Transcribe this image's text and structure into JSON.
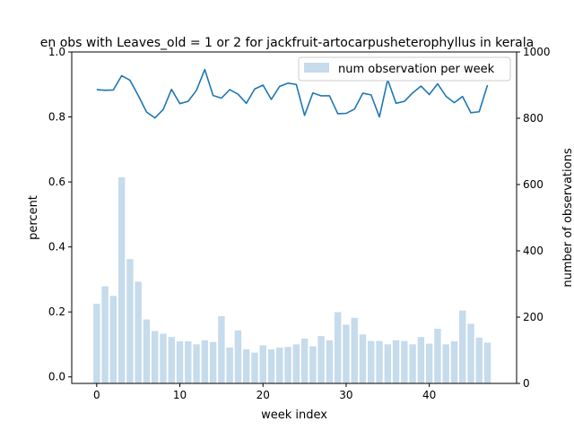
{
  "chart_data": {
    "type": "bar+line",
    "title": "en obs with Leaves_old = 1 or 2 for jackfruit-artocarpusheterophyllus in kerala",
    "xlabel": "week index",
    "ylabel_left": "percent",
    "ylabel_right": "number of observations",
    "xlim": [
      -3.0,
      50.5
    ],
    "ylim_left": [
      -0.02,
      1.0
    ],
    "ylim_right": [
      0,
      1000
    ],
    "x_ticks": [
      0,
      10,
      20,
      30,
      40
    ],
    "y_left_ticks": [
      "0.0",
      "0.2",
      "0.4",
      "0.6",
      "0.8",
      "1.0"
    ],
    "y_right_ticks": [
      "0",
      "200",
      "400",
      "600",
      "800",
      "1000"
    ],
    "legend": {
      "placement": "top-right",
      "label": "num observation per week"
    },
    "colors": {
      "bar": "#c6dbec",
      "line": "#1f77b4"
    },
    "weeks": [
      0,
      1,
      2,
      3,
      4,
      5,
      6,
      7,
      8,
      9,
      10,
      11,
      12,
      13,
      14,
      15,
      16,
      17,
      18,
      19,
      20,
      21,
      22,
      23,
      24,
      25,
      26,
      27,
      28,
      29,
      30,
      31,
      32,
      33,
      34,
      35,
      36,
      37,
      38,
      39,
      40,
      41,
      42,
      43,
      44,
      45,
      46,
      47
    ],
    "bar_counts": [
      240,
      293,
      264,
      622,
      375,
      307,
      193,
      158,
      150,
      140,
      127,
      127,
      118,
      130,
      125,
      203,
      108,
      160,
      103,
      93,
      115,
      103,
      108,
      110,
      118,
      135,
      112,
      143,
      130,
      215,
      177,
      198,
      148,
      128,
      128,
      118,
      130,
      128,
      118,
      140,
      120,
      165,
      118,
      127,
      220,
      180,
      138,
      123
    ],
    "line_percent": [
      0.884,
      0.882,
      0.883,
      0.927,
      0.913,
      0.866,
      0.815,
      0.797,
      0.823,
      0.885,
      0.841,
      0.848,
      0.882,
      0.946,
      0.866,
      0.858,
      0.884,
      0.87,
      0.842,
      0.886,
      0.898,
      0.854,
      0.894,
      0.904,
      0.9,
      0.805,
      0.874,
      0.865,
      0.865,
      0.81,
      0.811,
      0.824,
      0.873,
      0.868,
      0.8,
      0.915,
      0.842,
      0.848,
      0.874,
      0.895,
      0.869,
      0.902,
      0.864,
      0.844,
      0.863,
      0.813,
      0.816,
      0.898
    ]
  }
}
